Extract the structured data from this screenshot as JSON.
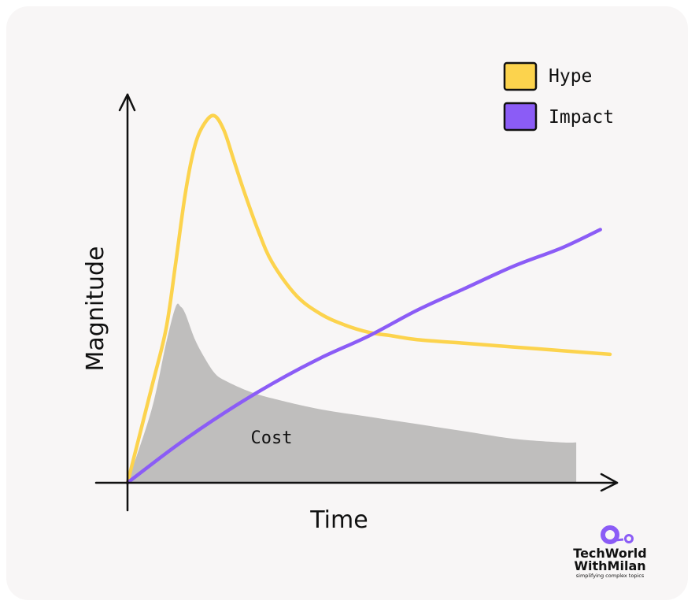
{
  "chart_data": {
    "type": "line",
    "title": "",
    "xlabel": "Time",
    "ylabel": "Magnitude",
    "x_ticks": [],
    "y_ticks": [],
    "grid": false,
    "legend_position": "top-right",
    "x_range": [
      0,
      100
    ],
    "y_range": [
      0,
      100
    ],
    "series": [
      {
        "name": "Hype",
        "color": "#fcd34d",
        "kind": "line",
        "x": [
          0,
          5,
          8,
          10,
          12,
          14,
          16,
          18,
          20,
          22,
          24,
          27,
          30,
          35,
          40,
          45,
          50,
          55,
          60,
          70,
          80,
          90,
          100
        ],
        "y": [
          0,
          26,
          42,
          60,
          79,
          92,
          98,
          100,
          96,
          88,
          80,
          69,
          60,
          51,
          46,
          43,
          41,
          40,
          39,
          38,
          37,
          36,
          35
        ]
      },
      {
        "name": "Impact",
        "color": "#8b5cf6",
        "kind": "line",
        "x": [
          0,
          10,
          20,
          30,
          40,
          50,
          60,
          70,
          80,
          90,
          98
        ],
        "y": [
          0,
          10,
          19,
          27,
          34,
          40,
          47,
          53,
          59,
          64,
          69
        ]
      },
      {
        "name": "Cost",
        "color": "#bfbebd",
        "kind": "area",
        "x": [
          0,
          5,
          8,
          10,
          11,
          12,
          14,
          16,
          18,
          20,
          25,
          30,
          40,
          50,
          60,
          70,
          80,
          90,
          93
        ],
        "y": [
          0,
          20,
          38,
          48,
          48,
          46,
          39,
          34,
          30,
          28,
          25,
          23,
          20,
          18,
          16,
          14,
          12,
          11,
          11
        ]
      }
    ],
    "annotations": [
      {
        "text": "Cost",
        "x": 30,
        "y": 12
      }
    ]
  },
  "branding": {
    "logo_line1": "TechWorld",
    "logo_line2": "WithMilan",
    "tagline": "simplifying complex topics"
  }
}
